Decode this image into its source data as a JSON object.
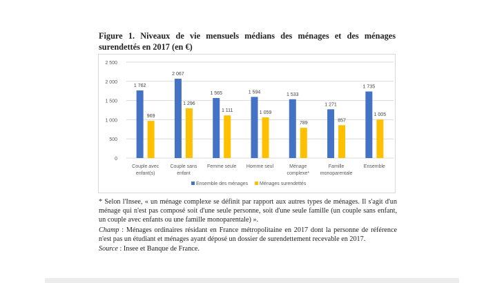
{
  "title": "Figure 1. Niveaux de vie mensuels médians des ménages et des ménages surendettés en 2017 (en €)",
  "chart_data": {
    "type": "bar",
    "title": "",
    "categories": [
      [
        "Couple avec",
        "enfant(s)"
      ],
      [
        "Couple sans",
        "enfant"
      ],
      [
        "Femme seule"
      ],
      [
        "Homme seul"
      ],
      [
        "Ménage",
        "complexe*"
      ],
      [
        "Famille",
        "monoparentale"
      ],
      [
        "Ensemble"
      ]
    ],
    "series": [
      {
        "name": "Ensemble des ménages",
        "color": "#4472c4",
        "values": [
          1762,
          2067,
          1565,
          1594,
          1533,
          1271,
          1735
        ]
      },
      {
        "name": "Ménages surendettés",
        "color": "#ffc000",
        "values": [
          969,
          1296,
          1111,
          1059,
          789,
          857,
          1005
        ]
      }
    ],
    "yticks": [
      "0",
      "500",
      "1 000",
      "1 500",
      "2 000",
      "2 500"
    ],
    "ylim": [
      0,
      2500
    ],
    "grid": true,
    "legend": "bottom"
  },
  "notes": {
    "footnote": "* Selon l'Insee, « un ménage complexe se définit par rapport aux autres types de ménages. Il s'agit d'un ménage qui n'est pas composé soit d'une seule personne, soit d'une seule famille (un couple sans enfant, un couple avec enfants ou une famille monoparentale) ».",
    "champ_label": "Champ",
    "champ": " : Ménages ordinaires résidant en France métropolitaine en 2017 dont la personne de référence n'est pas un étudiant et ménages ayant déposé un dossier de surendettement recevable en 2017.",
    "source_label": "Source",
    "source": " : Insee et Banque de France."
  }
}
